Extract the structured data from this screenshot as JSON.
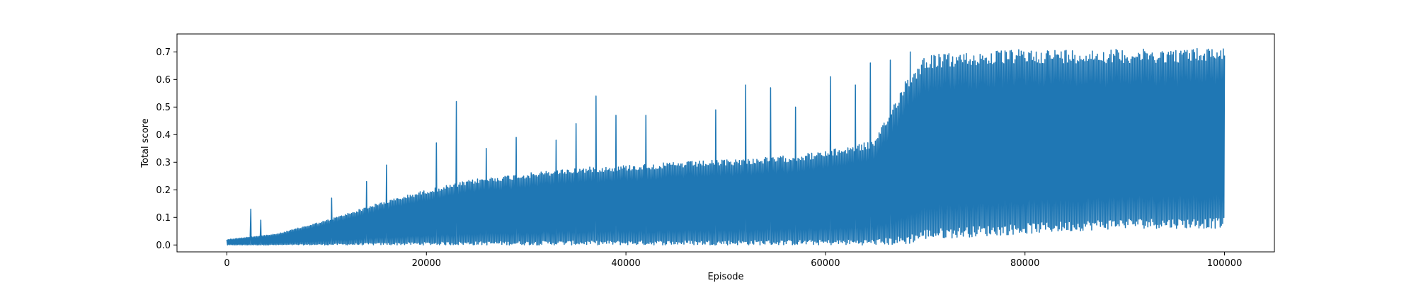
{
  "chart_data": {
    "type": "line",
    "title": "",
    "xlabel": "Episode",
    "ylabel": "Total score",
    "xlim": [
      -5000,
      105000
    ],
    "ylim": [
      -0.025,
      0.765
    ],
    "x_ticks": [
      0,
      20000,
      40000,
      60000,
      80000,
      100000
    ],
    "x_tick_labels": [
      "0",
      "20000",
      "40000",
      "60000",
      "80000",
      "100000"
    ],
    "y_ticks": [
      0.0,
      0.1,
      0.2,
      0.3,
      0.4,
      0.5,
      0.6,
      0.7
    ],
    "y_tick_labels": [
      "0.0",
      "0.1",
      "0.2",
      "0.3",
      "0.4",
      "0.5",
      "0.6",
      "0.7"
    ],
    "grid": false,
    "series": [
      {
        "color": "#1f77b4",
        "x_range": [
          0,
          100000
        ],
        "points_per_episode": 1,
        "envelope": {
          "x": [
            0,
            5000,
            10000,
            15000,
            20000,
            25000,
            30000,
            35000,
            40000,
            45000,
            50000,
            55000,
            60000,
            65000,
            68000,
            70000,
            75000,
            80000,
            85000,
            90000,
            95000,
            100000
          ],
          "lower": [
            0.0,
            0.0,
            0.0,
            0.0,
            0.0,
            0.0,
            0.0,
            0.0,
            0.0,
            0.0,
            0.0,
            0.0,
            0.0,
            0.0,
            0.0,
            0.02,
            0.03,
            0.04,
            0.05,
            0.06,
            0.06,
            0.06
          ],
          "typical_upper": [
            0.02,
            0.04,
            0.09,
            0.15,
            0.2,
            0.24,
            0.26,
            0.28,
            0.29,
            0.3,
            0.31,
            0.32,
            0.34,
            0.38,
            0.6,
            0.69,
            0.7,
            0.71,
            0.71,
            0.71,
            0.71,
            0.72
          ]
        },
        "peaks": [
          {
            "x": 2400,
            "y": 0.13
          },
          {
            "x": 3400,
            "y": 0.09
          },
          {
            "x": 10500,
            "y": 0.17
          },
          {
            "x": 14000,
            "y": 0.23
          },
          {
            "x": 16000,
            "y": 0.29
          },
          {
            "x": 21000,
            "y": 0.37
          },
          {
            "x": 23000,
            "y": 0.52
          },
          {
            "x": 26000,
            "y": 0.35
          },
          {
            "x": 29000,
            "y": 0.39
          },
          {
            "x": 33000,
            "y": 0.38
          },
          {
            "x": 35000,
            "y": 0.44
          },
          {
            "x": 37000,
            "y": 0.54
          },
          {
            "x": 39000,
            "y": 0.47
          },
          {
            "x": 42000,
            "y": 0.47
          },
          {
            "x": 49000,
            "y": 0.49
          },
          {
            "x": 52000,
            "y": 0.58
          },
          {
            "x": 54500,
            "y": 0.57
          },
          {
            "x": 57000,
            "y": 0.5
          },
          {
            "x": 60500,
            "y": 0.61
          },
          {
            "x": 63000,
            "y": 0.58
          },
          {
            "x": 64500,
            "y": 0.66
          },
          {
            "x": 66500,
            "y": 0.67
          },
          {
            "x": 68500,
            "y": 0.7
          }
        ]
      }
    ]
  }
}
